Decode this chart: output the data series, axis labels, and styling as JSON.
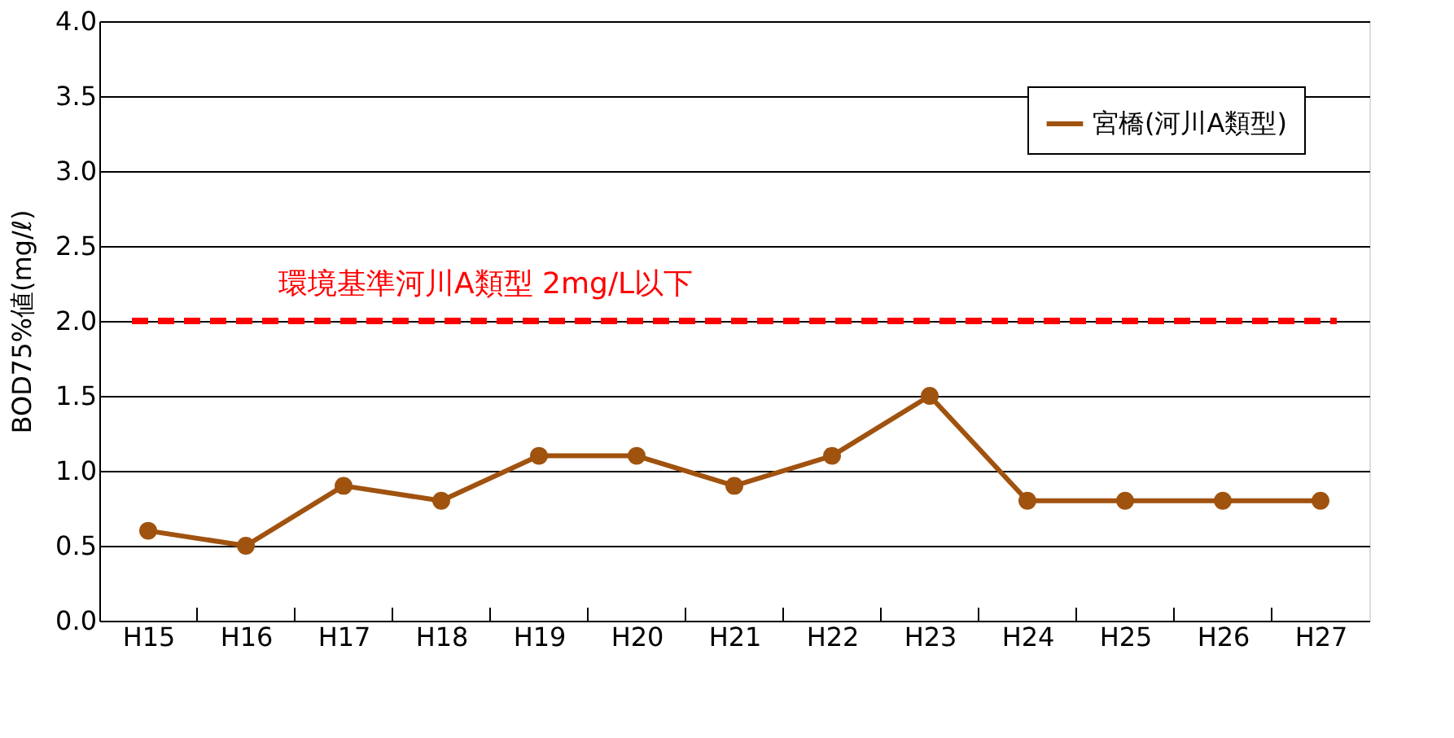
{
  "chart_data": {
    "type": "line",
    "ylabel": "BOD75%値(mg/ℓ)",
    "categories": [
      "H15",
      "H16",
      "H17",
      "H18",
      "H19",
      "H20",
      "H21",
      "H22",
      "H23",
      "H24",
      "H25",
      "H26",
      "H27"
    ],
    "series": [
      {
        "name": "宮橋(河川A類型)",
        "color": "#a0520f",
        "values": [
          0.6,
          0.5,
          0.9,
          0.8,
          1.1,
          1.1,
          0.9,
          1.1,
          1.5,
          0.8,
          0.8,
          0.8,
          0.8
        ]
      }
    ],
    "ylim": [
      0,
      4
    ],
    "yticks": [
      {
        "value": 0,
        "label": "0.0"
      },
      0.5,
      {
        "value": 1,
        "label": "1.0"
      },
      1.5,
      {
        "value": 2,
        "label": "2.0"
      },
      2.5,
      {
        "value": 3,
        "label": "3.0"
      },
      3.5,
      {
        "value": 4,
        "label": "4.0"
      }
    ],
    "ref_lines": [
      {
        "axis": "y",
        "value": 2,
        "label": "環境基準河川A類型  2mg/L以下",
        "color": "#ff0000",
        "line_style": "dashed"
      }
    ],
    "grid": "y",
    "legend": "top right",
    "marker": "circle",
    "line_style": "solid"
  }
}
